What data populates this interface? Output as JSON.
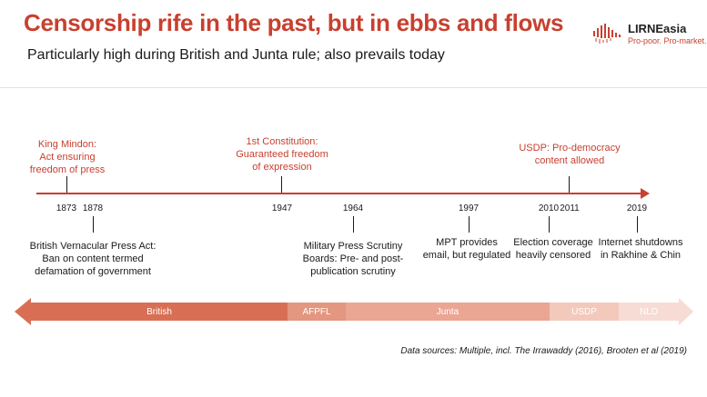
{
  "header": {
    "title": "Censorship rife in the past, but in ebbs and flows",
    "subtitle": "Particularly high during British and Junta rule; also prevails today"
  },
  "logo": {
    "name": "LIRNEasia",
    "tagline": "Pro-poor. Pro-market."
  },
  "timeline": {
    "years": [
      "1873",
      "1878",
      "1947",
      "1964",
      "1997",
      "2010",
      "2011",
      "2019"
    ],
    "events_above": [
      {
        "lines": [
          "King Mindon:",
          "Act ensuring",
          "freedom of press"
        ]
      },
      {
        "lines": [
          "1st Constitution:",
          "Guaranteed freedom",
          "of expression"
        ]
      },
      {
        "lines": [
          "USDP: Pro-democracy",
          "content allowed"
        ]
      }
    ],
    "events_below": [
      {
        "lines": [
          "British Vernacular Press Act:",
          "Ban on content termed",
          "defamation of government"
        ]
      },
      {
        "lines": [
          "Military Press Scrutiny",
          "Boards: Pre- and post-",
          "publication scrutiny"
        ]
      },
      {
        "lines": [
          "MPT provides",
          "email, but regulated"
        ]
      },
      {
        "lines": [
          "Election coverage",
          "heavily censored"
        ]
      },
      {
        "lines": [
          "Internet shutdowns",
          "in Rakhine & Chin"
        ]
      }
    ]
  },
  "eras": [
    {
      "label": "British",
      "color": "#d86f55"
    },
    {
      "label": "AFPFL",
      "color": "#e39680"
    },
    {
      "label": "Junta",
      "color": "#eba593"
    },
    {
      "label": "USDP",
      "color": "#f3c9bc"
    },
    {
      "label": "NLD",
      "color": "#f6dcd4"
    }
  ],
  "source": "Data sources: Multiple, incl. The Irrawaddy (2016), Brooten et al (2019)",
  "colors": {
    "accent": "#c8402f",
    "text": "#1a1a1a"
  }
}
